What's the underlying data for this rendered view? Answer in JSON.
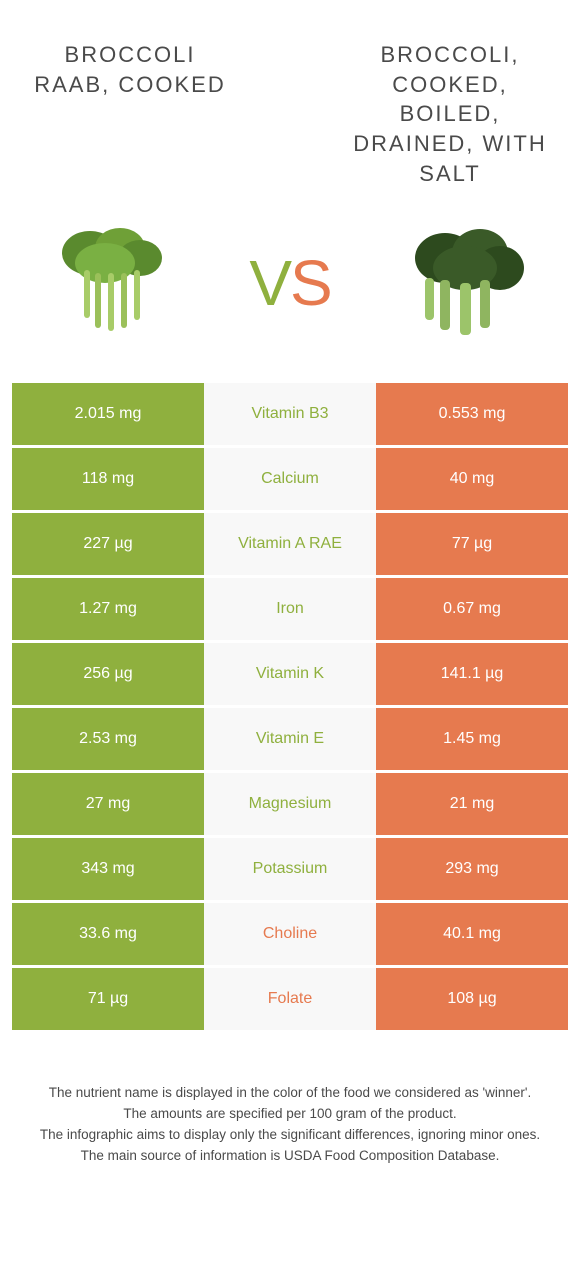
{
  "colors": {
    "green": "#8fb03e",
    "orange": "#e67a4f",
    "midBg": "#f8f8f8",
    "text": "#4a4a4a"
  },
  "header": {
    "leftTitle": "Broccoli raab, cooked",
    "rightTitle": "Broccoli, cooked, boiled, drained, with salt",
    "vs_v": "V",
    "vs_s": "S"
  },
  "rows": [
    {
      "left": "2.015 mg",
      "mid": "Vitamin B3",
      "right": "0.553 mg",
      "winner": "green"
    },
    {
      "left": "118 mg",
      "mid": "Calcium",
      "right": "40 mg",
      "winner": "green"
    },
    {
      "left": "227 µg",
      "mid": "Vitamin A RAE",
      "right": "77 µg",
      "winner": "green"
    },
    {
      "left": "1.27 mg",
      "mid": "Iron",
      "right": "0.67 mg",
      "winner": "green"
    },
    {
      "left": "256 µg",
      "mid": "Vitamin K",
      "right": "141.1 µg",
      "winner": "green"
    },
    {
      "left": "2.53 mg",
      "mid": "Vitamin E",
      "right": "1.45 mg",
      "winner": "green"
    },
    {
      "left": "27 mg",
      "mid": "Magnesium",
      "right": "21 mg",
      "winner": "green"
    },
    {
      "left": "343 mg",
      "mid": "Potassium",
      "right": "293 mg",
      "winner": "green"
    },
    {
      "left": "33.6 mg",
      "mid": "Choline",
      "right": "40.1 mg",
      "winner": "orange"
    },
    {
      "left": "71 µg",
      "mid": "Folate",
      "right": "108 µg",
      "winner": "orange"
    }
  ],
  "footer": {
    "line1": "The nutrient name is displayed in the color of the food we considered as 'winner'.",
    "line2": "The amounts are specified per 100 gram of the product.",
    "line3": "The infographic aims to display only the significant differences, ignoring minor ones.",
    "line4": "The main source of information is USDA Food Composition Database."
  }
}
